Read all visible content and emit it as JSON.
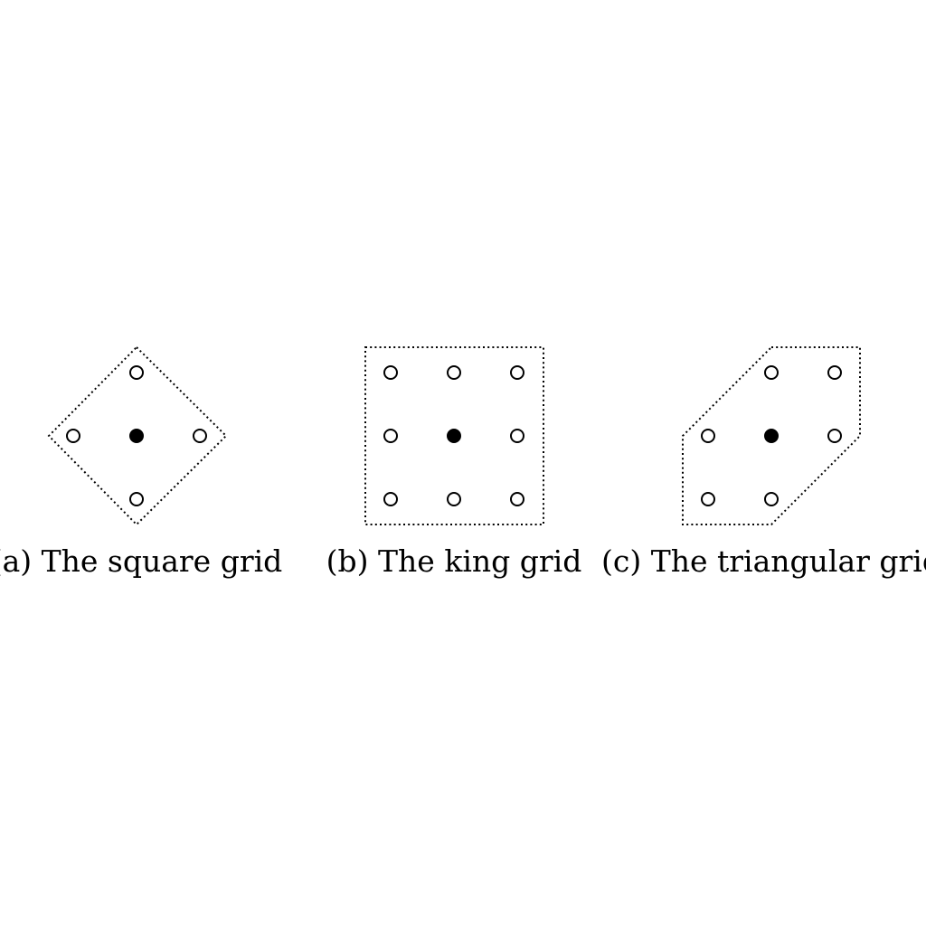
{
  "panels": [
    {
      "id": "square",
      "caption": "(a) The square grid",
      "center": [
        0,
        0
      ],
      "neighbors": [
        [
          0,
          1
        ],
        [
          -1,
          0
        ],
        [
          1,
          0
        ],
        [
          0,
          -1
        ]
      ]
    },
    {
      "id": "king",
      "caption": "(b) The king grid",
      "center": [
        0,
        0
      ],
      "neighbors": [
        [
          -1,
          1
        ],
        [
          0,
          1
        ],
        [
          1,
          1
        ],
        [
          -1,
          0
        ],
        [
          1,
          0
        ],
        [
          -1,
          -1
        ],
        [
          0,
          -1
        ],
        [
          1,
          -1
        ]
      ]
    },
    {
      "id": "triangular",
      "caption": "(c) The triangular grid",
      "center": [
        0,
        0
      ],
      "neighbors": [
        [
          0,
          1
        ],
        [
          1,
          1
        ],
        [
          -1,
          0
        ],
        [
          1,
          0
        ],
        [
          -1,
          -1
        ],
        [
          0,
          -1
        ]
      ]
    }
  ]
}
